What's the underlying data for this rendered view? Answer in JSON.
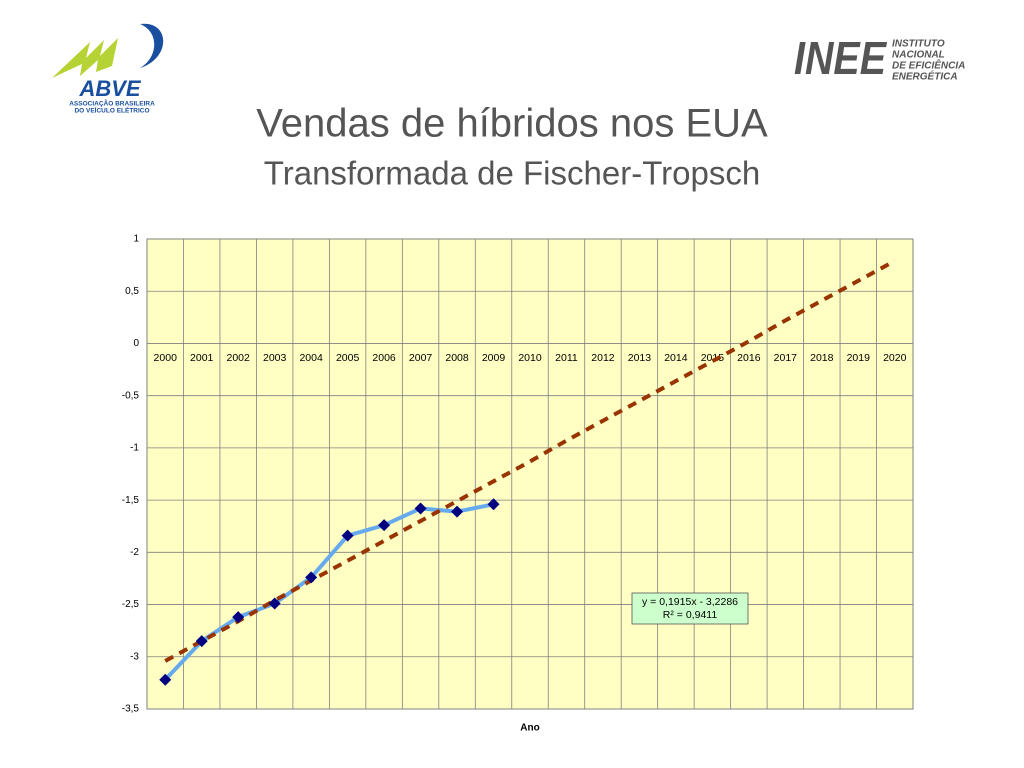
{
  "logos": {
    "left": {
      "name": "ABVE",
      "tagline_1": "ASSOCIAÇÃO BRASILEIRA",
      "tagline_2": "DO VEÍCULO ELÉTRICO"
    },
    "right": {
      "name": "INEE",
      "lines": [
        "INSTITUTO",
        "NACIONAL",
        "DE EFICIÊNCIA",
        "ENERGÉTICA"
      ]
    }
  },
  "chart_data": {
    "type": "line",
    "title": "Vendas de híbridos nos EUA",
    "subtitle": "Transformada de Fischer-Tropsch",
    "x_label": "Ano",
    "categories": [
      "2000",
      "2001",
      "2002",
      "2003",
      "2004",
      "2005",
      "2006",
      "2007",
      "2008",
      "2009",
      "2010",
      "2011",
      "2012",
      "2013",
      "2014",
      "2015",
      "2016",
      "2017",
      "2018",
      "2019",
      "2020"
    ],
    "series": [
      {
        "color": "#66aaee",
        "marker_color": "#000080",
        "values": [
          -3.22,
          -2.85,
          -2.62,
          -2.49,
          -2.24,
          -1.84,
          -1.74,
          -1.58,
          -1.61,
          -1.54,
          null,
          null,
          null,
          null,
          null,
          null,
          null,
          null,
          null,
          null,
          null
        ]
      },
      {
        "color": "#993300",
        "dashed": true,
        "values": [
          -3.04,
          -2.85,
          -2.66,
          -2.46,
          -2.27,
          -2.08,
          -1.89,
          -1.7,
          -1.51,
          -1.32,
          -1.13,
          -0.93,
          -0.74,
          -0.55,
          -0.36,
          -0.17,
          0.02,
          0.22,
          0.41,
          0.6,
          0.79
        ]
      }
    ],
    "annotations": [
      "y = 0,1915x - 3,2286",
      "R² = 0,9411"
    ],
    "ylim": [
      -3.5,
      1
    ],
    "yticks": [
      {
        "value": -3.5,
        "label": "-3,5"
      },
      -3,
      {
        "value": -2.5,
        "label": "-2,5"
      },
      -2,
      {
        "value": -1.5,
        "label": "-1,5"
      },
      -1,
      {
        "value": -0.5,
        "label": "-0,5"
      },
      0,
      {
        "value": 0.5,
        "label": "0,5"
      },
      1
    ],
    "grid": true,
    "background": "#ffffc4"
  }
}
